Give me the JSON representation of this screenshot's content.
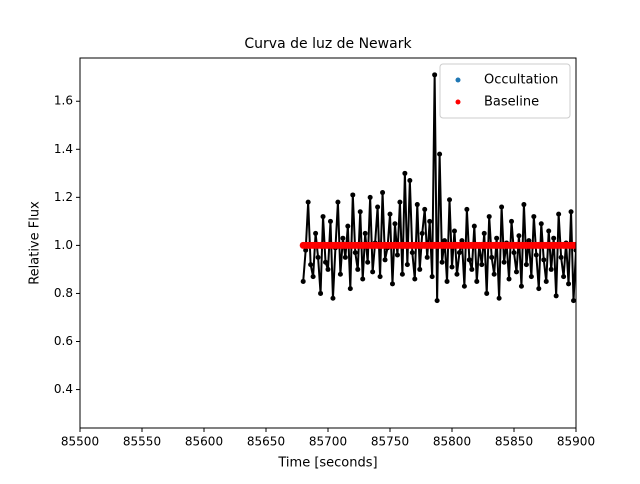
{
  "chart_data": {
    "type": "line",
    "title": "Curva de luz de Newark",
    "x_label": "Time [seconds]",
    "y_label": "Relative Flux",
    "xlim": [
      85500,
      85900
    ],
    "xticks": [
      85500,
      85550,
      85600,
      85650,
      85700,
      85750,
      85800,
      85850,
      85900
    ],
    "ylim": [
      0.24,
      1.78
    ],
    "yticks": [
      0.4,
      0.6,
      0.8,
      {
        "value": 1,
        "label": "1.0"
      },
      1.2,
      1.4,
      1.6
    ],
    "legend": "upper right",
    "x": [
      85680,
      85682,
      85684,
      85686,
      85688,
      85690,
      85692,
      85694,
      85696,
      85698,
      85700,
      85702,
      85704,
      85706,
      85708,
      85710,
      85712,
      85714,
      85716,
      85718,
      85720,
      85722,
      85724,
      85726,
      85728,
      85730,
      85732,
      85734,
      85736,
      85738,
      85740,
      85742,
      85744,
      85746,
      85748,
      85750,
      85752,
      85754,
      85756,
      85758,
      85760,
      85762,
      85764,
      85766,
      85768,
      85770,
      85772,
      85774,
      85776,
      85778,
      85780,
      85782,
      85784,
      85786,
      85788,
      85790,
      85792,
      85794,
      85796,
      85798,
      85800,
      85802,
      85804,
      85806,
      85808,
      85810,
      85812,
      85814,
      85816,
      85818,
      85820,
      85822,
      85824,
      85826,
      85828,
      85830,
      85832,
      85834,
      85836,
      85838,
      85840,
      85842,
      85844,
      85846,
      85848,
      85850,
      85852,
      85854,
      85856,
      85858,
      85860,
      85862,
      85864,
      85866,
      85868,
      85870,
      85872,
      85874,
      85876,
      85878,
      85880,
      85882,
      85884,
      85886,
      85888,
      85890,
      85892,
      85894,
      85896,
      85898,
      85900
    ],
    "series": [
      {
        "color": "#000000",
        "values": [
          0.85,
          0.98,
          1.18,
          0.92,
          0.87,
          1.05,
          0.95,
          0.8,
          1.12,
          0.93,
          0.9,
          1.1,
          0.78,
          0.99,
          1.18,
          0.88,
          1.03,
          0.95,
          1.08,
          0.82,
          1.21,
          0.97,
          0.9,
          1.14,
          0.86,
          1.05,
          0.93,
          1.2,
          0.89,
          1.01,
          1.16,
          0.87,
          1.22,
          0.94,
          0.99,
          1.13,
          0.84,
          1.09,
          0.96,
          1.18,
          0.88,
          1.3,
          0.92,
          1.27,
          0.97,
          0.86,
          1.17,
          0.9,
          1.05,
          1.15,
          0.95,
          1.1,
          0.87,
          1.71,
          0.77,
          1.38,
          0.93,
          1.02,
          0.85,
          1.19,
          0.91,
          1.06,
          0.88,
          0.97,
          1.02,
          0.83,
          1.15,
          0.94,
          0.9,
          1.08,
          0.85,
          1.0,
          0.92,
          1.05,
          0.8,
          1.12,
          0.95,
          0.88,
          1.03,
          0.78,
          1.16,
          0.93,
          1.01,
          0.86,
          1.1,
          0.97,
          0.89,
          1.04,
          0.83,
          1.17,
          0.92,
          1.02,
          0.87,
          1.12,
          0.96,
          0.82,
          1.09,
          0.94,
          0.85,
          1.06,
          0.9,
          1.03,
          0.79,
          1.13,
          0.95,
          0.87,
          1.01,
          0.84,
          1.14,
          0.77,
          0.98
        ]
      },
      {
        "name": "Occultation",
        "color": "#1f77b4",
        "values": [
          null,
          null,
          null,
          null,
          null,
          null,
          null,
          null,
          null,
          null,
          null,
          null,
          null,
          null,
          null,
          null,
          null,
          null,
          null,
          null,
          null,
          null,
          null,
          null,
          null,
          null,
          null,
          null,
          null,
          null,
          null,
          null,
          null,
          null,
          null,
          null,
          null,
          null,
          null,
          null,
          null,
          null,
          null,
          null,
          null,
          null,
          null,
          null,
          null,
          null,
          null,
          null,
          null,
          null,
          null,
          null,
          null,
          null,
          null,
          null,
          null,
          null,
          null,
          null,
          null,
          null,
          null,
          null,
          null,
          null,
          null,
          null,
          null,
          null,
          null,
          null,
          null,
          null,
          null,
          null,
          null,
          null,
          null,
          null,
          null,
          null,
          null,
          null,
          null,
          null,
          null,
          null,
          null,
          null,
          null,
          null,
          null,
          null,
          null,
          null,
          null,
          null,
          null,
          null,
          null,
          null,
          null,
          null,
          null,
          null,
          null
        ]
      },
      {
        "name": "Baseline",
        "color": "#ff0000",
        "values": [
          1,
          1,
          1,
          1,
          1,
          1,
          1,
          1,
          1,
          1,
          1,
          1,
          1,
          1,
          1,
          1,
          1,
          1,
          1,
          1,
          1,
          1,
          1,
          1,
          1,
          1,
          1,
          1,
          1,
          1,
          1,
          1,
          1,
          1,
          1,
          1,
          1,
          1,
          1,
          1,
          1,
          1,
          1,
          1,
          1,
          1,
          1,
          1,
          1,
          1,
          1,
          1,
          1,
          1,
          1,
          1,
          1,
          1,
          1,
          1,
          1,
          1,
          1,
          1,
          1,
          1,
          1,
          1,
          1,
          1,
          1,
          1,
          1,
          1,
          1,
          1,
          1,
          1,
          1,
          1,
          1,
          1,
          1,
          1,
          1,
          1,
          1,
          1,
          1,
          1,
          1,
          1,
          1,
          1,
          1,
          1,
          1,
          1,
          1,
          1,
          1,
          1,
          1,
          1,
          1,
          1,
          1,
          1,
          1,
          1,
          1
        ]
      }
    ]
  }
}
